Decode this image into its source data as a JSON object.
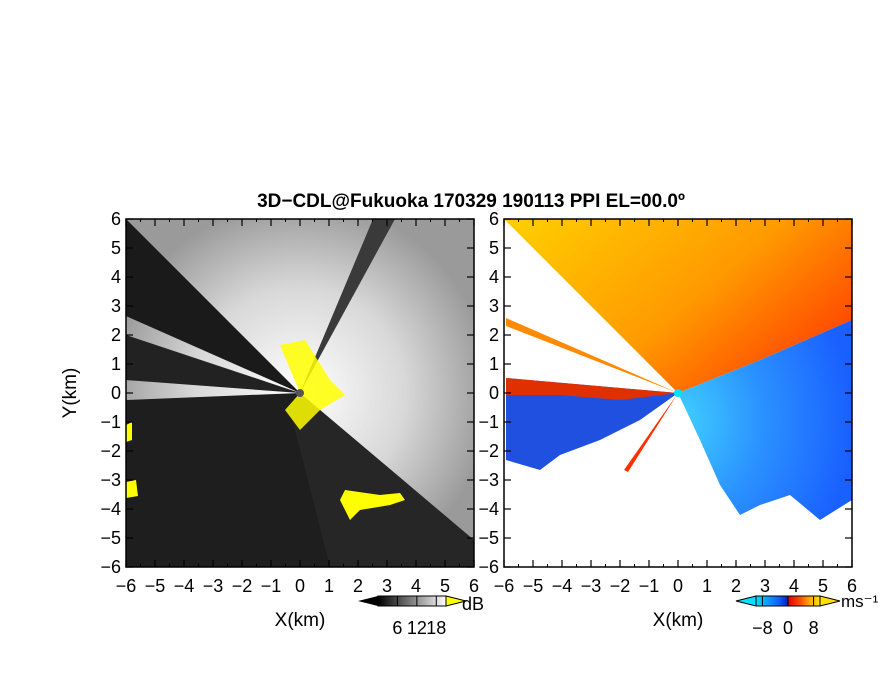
{
  "figure": {
    "title": "3D−CDL@Fukuoka 170329 190113 PPI EL=00.0º"
  },
  "chart_data": [
    {
      "type": "heatmap",
      "panel": "snr",
      "xlabel": "X(km)",
      "ylabel": "Y(km)",
      "xlim": [
        -6,
        6
      ],
      "ylim": [
        -6,
        6
      ],
      "xticks": [
        -6,
        -5,
        -4,
        -3,
        -2,
        -1,
        0,
        1,
        2,
        3,
        4,
        5,
        6
      ],
      "yticks": [
        -6,
        -5,
        -4,
        -3,
        -2,
        -1,
        0,
        1,
        2,
        3,
        4,
        5,
        6
      ],
      "tick_labels": [
        "−6",
        "−5",
        "−4",
        "−3",
        "−2",
        "−1",
        "0",
        "1",
        "2",
        "3",
        "4",
        "5",
        "6"
      ],
      "colorbar": {
        "unit": "dB",
        "ticks": [
          6,
          12,
          18
        ],
        "tick_labels": [
          "6",
          "12",
          "18"
        ],
        "colors": [
          "#000000",
          "#ffffff"
        ],
        "flag_color": "#ffff00"
      }
    },
    {
      "type": "heatmap",
      "panel": "doppler-velocity",
      "xlabel": "X(km)",
      "xlim": [
        -6,
        6
      ],
      "ylim": [
        -6,
        6
      ],
      "xticks": [
        -6,
        -5,
        -4,
        -3,
        -2,
        -1,
        0,
        1,
        2,
        3,
        4,
        5,
        6
      ],
      "yticks": [
        -6,
        -5,
        -4,
        -3,
        -2,
        -1,
        0,
        1,
        2,
        3,
        4,
        5,
        6
      ],
      "tick_labels": [
        "−6",
        "−5",
        "−4",
        "−3",
        "−2",
        "−1",
        "0",
        "1",
        "2",
        "3",
        "4",
        "5",
        "6"
      ],
      "colorbar": {
        "unit": "ms⁻¹",
        "ticks": [
          -8,
          0,
          8
        ],
        "tick_labels": [
          "−8",
          "0",
          "8"
        ],
        "colors": [
          "#00e0ff",
          "#1060ff",
          "#0020c0",
          "#e00000",
          "#ff5000",
          "#ffb000",
          "#ffe000"
        ]
      }
    }
  ]
}
